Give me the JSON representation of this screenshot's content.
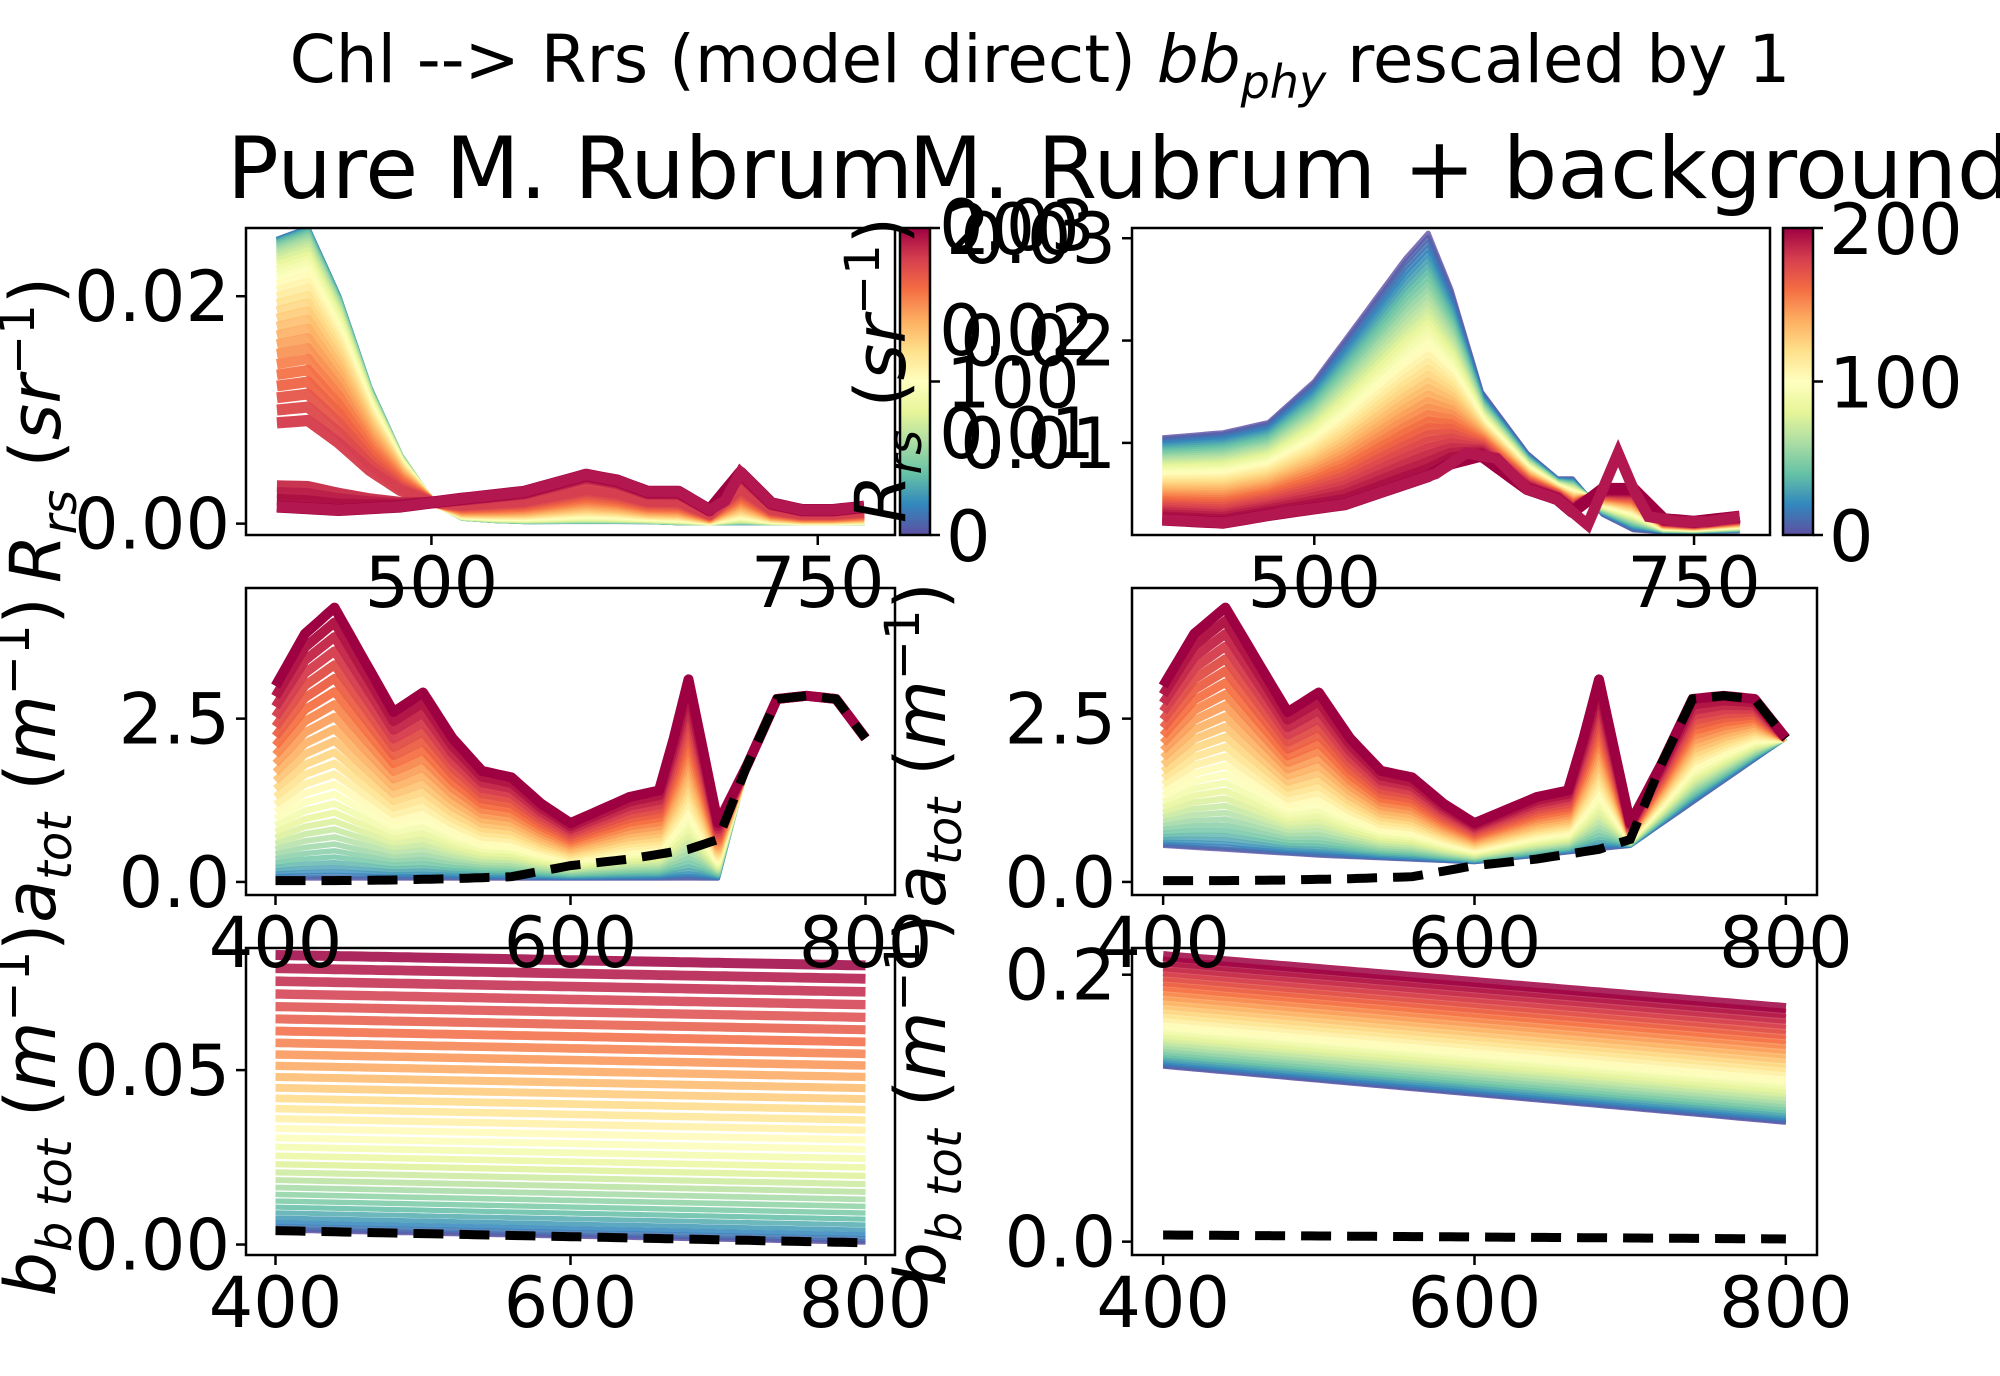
{
  "figure": {
    "suptitle_main": "Chl --> Rrs (model direct) ",
    "suptitle_sym": "bb",
    "suptitle_sub": "phy",
    "suptitle_tail": " rescaled by 1"
  },
  "colormap": {
    "name": "Spectral_r",
    "stops": [
      "#5e4fa2",
      "#3288bd",
      "#66c2a5",
      "#abdda4",
      "#e6f598",
      "#ffffbf",
      "#fee08b",
      "#fdae61",
      "#f46d43",
      "#d53e4f",
      "#9e0142"
    ]
  },
  "colorbar": {
    "range": [
      0,
      200
    ],
    "ticks": [
      "0",
      "100",
      "200"
    ]
  },
  "chart_data": [
    {
      "id": "rrs-pure",
      "type": "line",
      "title": "Pure M. Rubrum",
      "ylabel": "Rrs (sr^-1)",
      "xlim": [
        380,
        800
      ],
      "ylim": [
        -0.001,
        0.026
      ],
      "xticks": [
        "500",
        "750"
      ],
      "yticks": [
        "0.00",
        "0.02"
      ],
      "colorbar_ticks": [
        "0",
        "100",
        "200"
      ],
      "series": [
        {
          "x": [
            400,
            420,
            440,
            460,
            480,
            500,
            520,
            540,
            560,
            580,
            600,
            620,
            640,
            660,
            680,
            700,
            720,
            740,
            760,
            780
          ],
          "values": [
            0.025,
            0.026,
            0.02,
            0.012,
            0.006,
            0.002,
            0.0005,
            0.0003,
            0.0002,
            0.0002,
            0.0002,
            0.0002,
            0.0002,
            0.0001,
            0.0001,
            0.0001,
            0.0001,
            0.0001,
            0.0001,
            0.0001
          ]
        },
        {
          "x": [
            400,
            440,
            480,
            520,
            560,
            600,
            620,
            640,
            660,
            680,
            690,
            700,
            720,
            740,
            760,
            780
          ],
          "values": [
            0.0015,
            0.0012,
            0.0015,
            0.0022,
            0.0028,
            0.0043,
            0.0038,
            0.0028,
            0.0028,
            0.0012,
            0.002,
            0.0045,
            0.0018,
            0.0012,
            0.0012,
            0.0015
          ]
        }
      ]
    },
    {
      "id": "rrs-background",
      "type": "line",
      "title": "M. Rubrum + background",
      "ylabel": "Rrs (sr^-1)",
      "xlim": [
        380,
        800
      ],
      "ylim": [
        0.001,
        0.031
      ],
      "xticks": [
        "500",
        "750"
      ],
      "yticks": [
        "0.01",
        "0.02",
        "0.03"
      ],
      "colorbar_ticks": [
        "0",
        "100",
        "200"
      ],
      "series": [
        {
          "x": [
            400,
            440,
            470,
            500,
            520,
            540,
            560,
            575,
            590,
            610,
            640,
            660,
            670,
            690,
            710,
            730,
            750,
            780
          ],
          "values": [
            0.0105,
            0.011,
            0.012,
            0.016,
            0.02,
            0.024,
            0.028,
            0.0305,
            0.025,
            0.015,
            0.009,
            0.0065,
            0.0065,
            0.003,
            0.0015,
            0.0013,
            0.0013,
            0.0014
          ]
        },
        {
          "x": [
            400,
            440,
            480,
            520,
            550,
            580,
            600,
            620,
            640,
            660,
            680,
            700,
            710,
            720,
            740,
            760,
            780
          ],
          "values": [
            0.0025,
            0.0022,
            0.0032,
            0.004,
            0.0055,
            0.007,
            0.009,
            0.0085,
            0.0055,
            0.0045,
            0.002,
            0.009,
            0.0055,
            0.0028,
            0.0023,
            0.0023,
            0.0028
          ]
        }
      ]
    },
    {
      "id": "atot-pure",
      "type": "line",
      "ylabel": "a_tot (m^-1)",
      "xlim": [
        380,
        820
      ],
      "ylim": [
        -0.2,
        4.5
      ],
      "xticks": [
        "400",
        "600",
        "800"
      ],
      "yticks": [
        "0.0",
        "2.5"
      ],
      "series": [
        {
          "x": [
            400,
            420,
            440,
            460,
            480,
            500,
            520,
            540,
            560,
            580,
            600,
            620,
            640,
            660,
            670,
            680,
            690,
            700,
            720,
            740,
            760,
            780,
            800
          ],
          "values": [
            3.0,
            3.8,
            4.2,
            3.4,
            2.6,
            2.9,
            2.2,
            1.7,
            1.6,
            1.2,
            0.9,
            1.1,
            1.3,
            1.4,
            2.2,
            3.1,
            2.0,
            0.9,
            1.8,
            2.8,
            2.85,
            2.8,
            2.2
          ]
        },
        {
          "x": [
            400,
            440,
            480,
            520,
            560,
            600,
            640,
            680,
            700,
            720,
            740,
            760,
            780,
            800
          ],
          "values": [
            0.02,
            0.02,
            0.03,
            0.05,
            0.08,
            0.25,
            0.35,
            0.5,
            0.65,
            1.8,
            2.8,
            2.85,
            2.8,
            2.2
          ]
        }
      ]
    },
    {
      "id": "atot-background",
      "type": "line",
      "ylabel": "a_tot (m^-1)",
      "xlim": [
        380,
        820
      ],
      "ylim": [
        -0.2,
        4.5
      ],
      "xticks": [
        "400",
        "600",
        "800"
      ],
      "yticks": [
        "0.0",
        "2.5"
      ],
      "series": [
        {
          "x": [
            400,
            420,
            440,
            460,
            480,
            500,
            520,
            540,
            560,
            580,
            600,
            620,
            640,
            660,
            670,
            680,
            690,
            700,
            720,
            740,
            760,
            780,
            800
          ],
          "values": [
            3.0,
            3.8,
            4.2,
            3.4,
            2.6,
            2.9,
            2.2,
            1.7,
            1.6,
            1.2,
            0.9,
            1.1,
            1.3,
            1.4,
            2.2,
            3.1,
            2.0,
            0.9,
            1.8,
            2.8,
            2.85,
            2.8,
            2.2
          ]
        },
        {
          "x": [
            400,
            440,
            480,
            520,
            560,
            600,
            640,
            680,
            700,
            720,
            740,
            760,
            780,
            800
          ],
          "values": [
            0.02,
            0.02,
            0.03,
            0.05,
            0.08,
            0.25,
            0.35,
            0.5,
            0.65,
            1.8,
            2.8,
            2.85,
            2.8,
            2.2
          ]
        }
      ]
    },
    {
      "id": "btot-pure",
      "type": "line",
      "ylabel": "bb_tot (m^-1)",
      "xlim": [
        380,
        820
      ],
      "ylim": [
        -0.003,
        0.085
      ],
      "xticks": [
        "400",
        "600",
        "800"
      ],
      "yticks": [
        "0.00",
        "0.05"
      ],
      "series": [
        {
          "x": [
            400,
            800
          ],
          "values": [
            0.083,
            0.08
          ]
        },
        {
          "x": [
            400,
            800
          ],
          "values": [
            0.004,
            0.0005
          ]
        }
      ]
    },
    {
      "id": "btot-background",
      "type": "line",
      "ylabel": "bb_tot (m^-1)",
      "xlim": [
        380,
        820
      ],
      "ylim": [
        -0.01,
        0.22
      ],
      "xticks": [
        "400",
        "600",
        "800"
      ],
      "yticks": [
        "0.0",
        "0.2"
      ],
      "series": [
        {
          "x": [
            400,
            800
          ],
          "values": [
            0.214,
            0.175
          ]
        },
        {
          "x": [
            400,
            800
          ],
          "values": [
            0.131,
            0.089
          ]
        },
        {
          "x": [
            400,
            800
          ],
          "values": [
            0.005,
            0.002
          ]
        }
      ]
    }
  ]
}
